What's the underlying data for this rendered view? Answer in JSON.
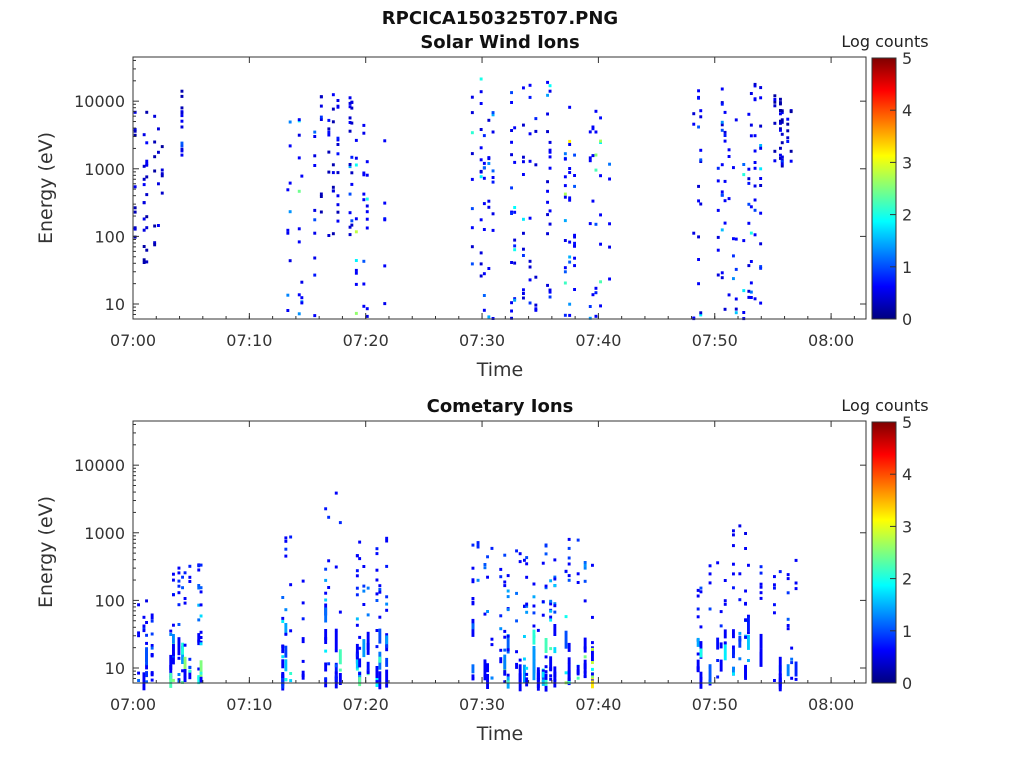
{
  "figure_title": "RPCICA150325T07.PNG",
  "colormap": [
    "#00007f",
    "#0000ff",
    "#007fff",
    "#00ffff",
    "#7fff7f",
    "#ffff00",
    "#ff7f00",
    "#ff0000",
    "#7f0000"
  ],
  "chart_data": [
    {
      "type": "heatmap",
      "title": "Solar Wind Ions",
      "xlabel": "Time",
      "ylabel": "Energy (eV)",
      "y_scale": "log",
      "ylim": [
        6,
        45000
      ],
      "xlim": [
        "07:00",
        "08:03"
      ],
      "x_ticks": [
        "07:00",
        "07:10",
        "07:20",
        "07:30",
        "07:40",
        "07:50",
        "08:00"
      ],
      "y_ticks": [
        "10",
        "100",
        "1000",
        "10000"
      ],
      "colorbar": {
        "label": "Log counts",
        "range": [
          0,
          5
        ],
        "ticks": [
          "0",
          "1",
          "2",
          "3",
          "4",
          "5"
        ]
      },
      "activity_bursts": [
        {
          "start": "07:00",
          "end": "07:03",
          "energy_range": [
            40,
            7000
          ],
          "peak_log_counts": 1
        },
        {
          "start": "07:04",
          "end": "07:05",
          "energy_range": [
            1000,
            15000
          ],
          "peak_log_counts": 1.5
        },
        {
          "start": "07:13",
          "end": "07:16",
          "energy_range": [
            6,
            6000
          ],
          "peak_log_counts": 3
        },
        {
          "start": "07:16",
          "end": "07:19",
          "energy_range": [
            100,
            14000
          ],
          "peak_log_counts": 1.5
        },
        {
          "start": "07:19",
          "end": "07:22",
          "energy_range": [
            6,
            8000
          ],
          "peak_log_counts": 3.5
        },
        {
          "start": "07:29",
          "end": "07:36",
          "energy_range": [
            6,
            22000
          ],
          "peak_log_counts": 2.5
        },
        {
          "start": "07:37",
          "end": "07:41",
          "energy_range": [
            6,
            9000
          ],
          "peak_log_counts": 3.5
        },
        {
          "start": "07:48",
          "end": "07:54",
          "energy_range": [
            6,
            18000
          ],
          "peak_log_counts": 2.5
        },
        {
          "start": "07:55",
          "end": "07:57",
          "energy_range": [
            1000,
            12000
          ],
          "peak_log_counts": 1
        }
      ]
    },
    {
      "type": "heatmap",
      "title": "Cometary Ions",
      "xlabel": "Time",
      "ylabel": "Energy (eV)",
      "y_scale": "log",
      "ylim": [
        6,
        45000
      ],
      "xlim": [
        "07:00",
        "08:03"
      ],
      "x_ticks": [
        "07:00",
        "07:10",
        "07:20",
        "07:30",
        "07:40",
        "07:50",
        "08:00"
      ],
      "y_ticks": [
        "10",
        "100",
        "1000",
        "10000"
      ],
      "colorbar": {
        "label": "Log counts",
        "range": [
          0,
          5
        ],
        "ticks": [
          "0",
          "1",
          "2",
          "3",
          "4",
          "5"
        ]
      },
      "activity_bursts": [
        {
          "start": "07:00",
          "end": "07:02",
          "energy_range": [
            6,
            100
          ],
          "peak_log_counts": 2
        },
        {
          "start": "07:03",
          "end": "07:06",
          "energy_range": [
            6,
            400
          ],
          "peak_log_counts": 3
        },
        {
          "start": "07:12",
          "end": "07:15",
          "energy_range": [
            6,
            900
          ],
          "peak_log_counts": 3
        },
        {
          "start": "07:16",
          "end": "07:19",
          "energy_range": [
            6,
            4000
          ],
          "peak_log_counts": 2.5
        },
        {
          "start": "07:19",
          "end": "07:22",
          "energy_range": [
            6,
            1100
          ],
          "peak_log_counts": 2.5
        },
        {
          "start": "07:28",
          "end": "07:33",
          "energy_range": [
            6,
            800
          ],
          "peak_log_counts": 3
        },
        {
          "start": "07:33",
          "end": "07:37",
          "energy_range": [
            6,
            700
          ],
          "peak_log_counts": 3.5
        },
        {
          "start": "07:37",
          "end": "07:40",
          "energy_range": [
            6,
            800
          ],
          "peak_log_counts": 3.5
        },
        {
          "start": "07:48",
          "end": "07:51",
          "energy_range": [
            6,
            450
          ],
          "peak_log_counts": 2.5
        },
        {
          "start": "07:51",
          "end": "07:54",
          "energy_range": [
            8,
            1500
          ],
          "peak_log_counts": 2
        },
        {
          "start": "07:55",
          "end": "07:57",
          "energy_range": [
            6,
            400
          ],
          "peak_log_counts": 2.5
        }
      ]
    }
  ]
}
